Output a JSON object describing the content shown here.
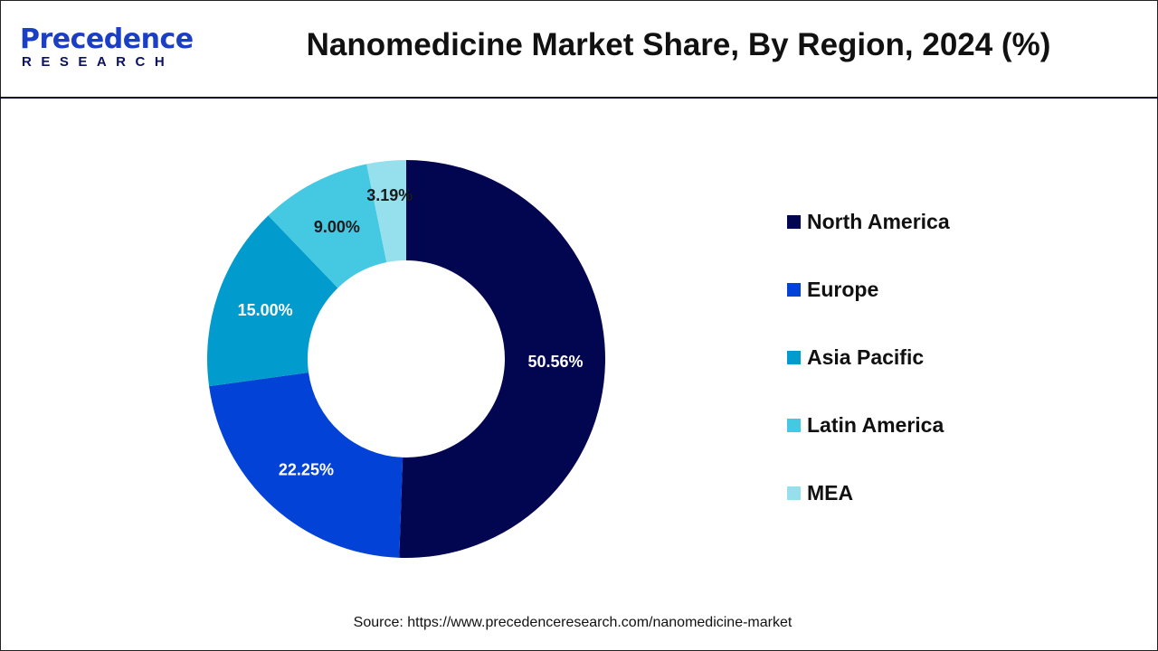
{
  "header": {
    "logo": {
      "line1": "Precedence",
      "line2": "RESEARCH"
    },
    "title": "Nanomedicine Market Share, By Region, 2024 (%)"
  },
  "chart_data": {
    "type": "pie",
    "variant": "donut",
    "title": "Nanomedicine Market Share, By Region, 2024 (%)",
    "categories": [
      "North America",
      "Europe",
      "Asia Pacific",
      "Latin America",
      "MEA"
    ],
    "values": [
      50.56,
      22.25,
      15.0,
      9.0,
      3.19
    ],
    "labels": [
      "50.56%",
      "22.25%",
      "15.00%",
      "9.00%",
      "3.19%"
    ],
    "colors": [
      "#020550",
      "#0342d6",
      "#019ccd",
      "#45c8e2",
      "#96e0ee"
    ],
    "label_colors": [
      "#ffffff",
      "#ffffff",
      "#ffffff",
      "#1a1a1a",
      "#1a1a1a"
    ],
    "start": "top",
    "direction": "clockwise",
    "legend_position": "right"
  },
  "source": "Source: https://www.precedenceresearch.com/nanomedicine-market"
}
